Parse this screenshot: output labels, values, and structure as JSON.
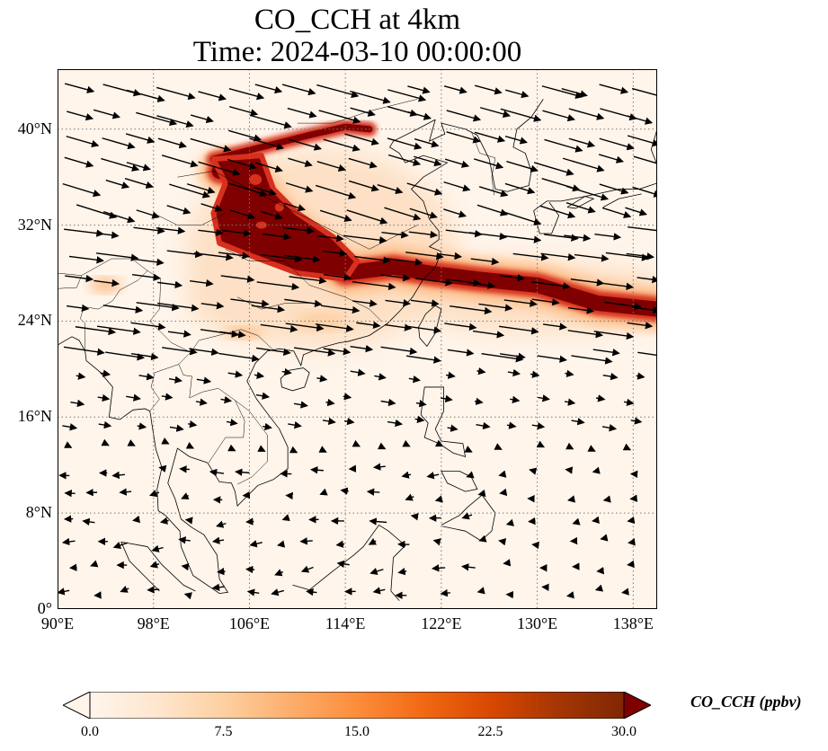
{
  "title": {
    "line1": "CO_CCH at 4km",
    "line2": "Time: 2024-03-10 00:00:00"
  },
  "map": {
    "lon_range": [
      90,
      140
    ],
    "lat_range": [
      0,
      45
    ],
    "lat_ticks": [
      {
        "value": 0,
        "label": "0°"
      },
      {
        "value": 8,
        "label": "8°N"
      },
      {
        "value": 16,
        "label": "16°N"
      },
      {
        "value": 24,
        "label": "24°N"
      },
      {
        "value": 32,
        "label": "32°N"
      },
      {
        "value": 40,
        "label": "40°N"
      }
    ],
    "lon_ticks": [
      {
        "value": 90,
        "label": "90°E"
      },
      {
        "value": 98,
        "label": "98°E"
      },
      {
        "value": 106,
        "label": "106°E"
      },
      {
        "value": 114,
        "label": "114°E"
      },
      {
        "value": 122,
        "label": "122°E"
      },
      {
        "value": 130,
        "label": "130°E"
      },
      {
        "value": 138,
        "label": "138°E"
      }
    ],
    "gridlines": "dotted",
    "background_color": "#fff5eb"
  },
  "colorbar": {
    "label": "CO_CCH (ppbv)",
    "ticks": [
      "0.0",
      "7.5",
      "15.0",
      "22.5",
      "30.0"
    ],
    "range": [
      0,
      30
    ],
    "extend": "both",
    "colors": [
      "#fff5eb",
      "#fee6ce",
      "#fdd0a2",
      "#fdae6b",
      "#fd8d3c",
      "#f16913",
      "#d94801",
      "#a63603",
      "#7f2704"
    ]
  },
  "plume": {
    "description_colors": {
      "high": "#7f0000",
      "mid": "#d7301f",
      "low": "#fdbb84",
      "faint": "#fde0c5"
    },
    "core_path": [
      [
        103.5,
        36.5
      ],
      [
        106,
        36
      ],
      [
        108,
        33
      ],
      [
        111,
        30.5
      ],
      [
        114,
        28
      ],
      [
        118,
        28.5
      ],
      [
        121,
        28
      ],
      [
        125,
        27.5
      ],
      [
        130,
        27
      ],
      [
        135,
        25.5
      ],
      [
        140,
        25
      ]
    ],
    "north_arc": [
      [
        103,
        37.5
      ],
      [
        107,
        38.5
      ],
      [
        111,
        39.5
      ],
      [
        114,
        40.2
      ],
      [
        116,
        40
      ]
    ]
  }
}
